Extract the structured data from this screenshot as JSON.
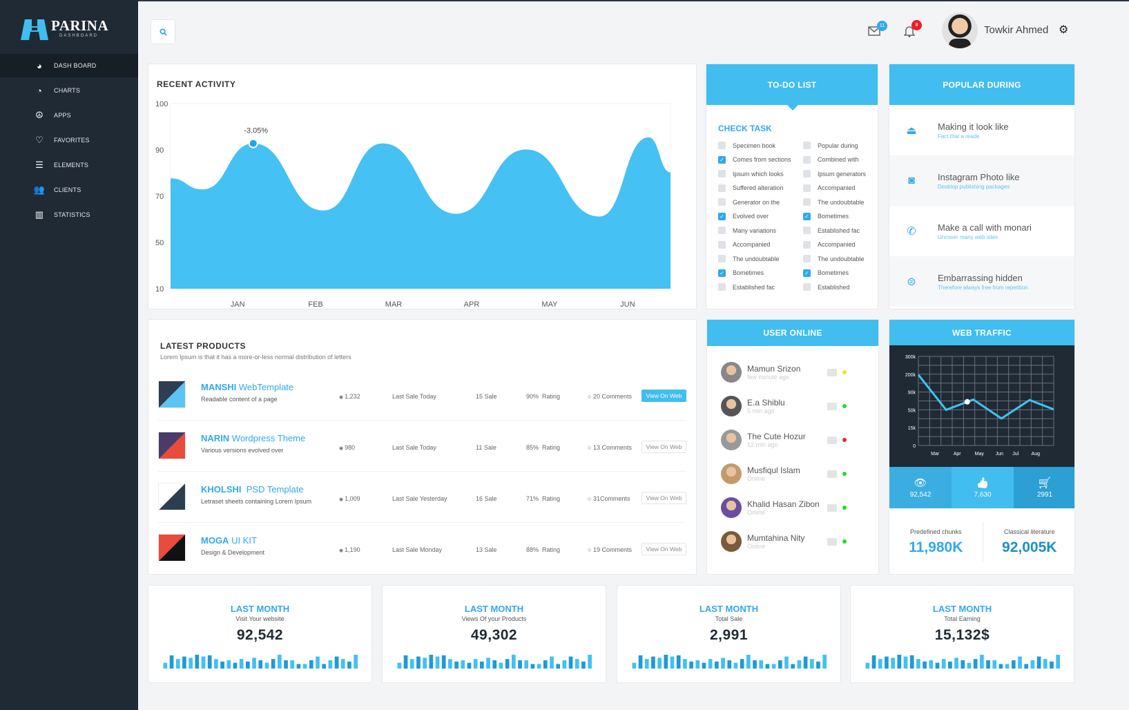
{
  "brand": {
    "name": "PARINA",
    "subtitle": "DASHBOARD",
    "accent": "#41bdf0"
  },
  "sidebar": {
    "items": [
      {
        "label": "DASH BOARD",
        "icon": "dashboard-icon",
        "active": true
      },
      {
        "label": "CHARTS",
        "icon": "pie-chart-icon"
      },
      {
        "label": "APPS",
        "icon": "apps-icon"
      },
      {
        "label": "FAVORITES",
        "icon": "heart-icon"
      },
      {
        "label": "ELEMENTS",
        "icon": "list-icon"
      },
      {
        "label": "CLIENTS",
        "icon": "users-icon"
      },
      {
        "label": "STATISTICS",
        "icon": "bar-chart-icon"
      }
    ]
  },
  "header": {
    "mail_count": "11",
    "notification_count": "8",
    "user_name": "Towkir Ahmed"
  },
  "recent_activity": {
    "title": "RECENT ACTIVITY",
    "chart_data": {
      "type": "area",
      "categories": [
        "JAN",
        "FEB",
        "MAR",
        "APR",
        "MAY",
        "JUN"
      ],
      "yticks": [
        100,
        90,
        70,
        50,
        10
      ],
      "xlim": [
        0.14,
        6.55
      ],
      "x": [
        0.14,
        0.55,
        1.2,
        2.1,
        2.86,
        3.8,
        4.7,
        5.64,
        6.27,
        6.55
      ],
      "y": [
        77.7,
        72.9,
        91.4,
        63.8,
        91.4,
        62.4,
        90.1,
        61.2,
        92.7,
        80.3
      ],
      "annotation": {
        "x": 1.2,
        "y": 91.4,
        "label": "-3.05%"
      },
      "color": "#45c1f3"
    }
  },
  "todo": {
    "title": "TO-DO LIST",
    "section": "CHECK TASK",
    "left": [
      {
        "label": "Specimen book",
        "checked": false
      },
      {
        "label": "Comes from sections",
        "checked": true
      },
      {
        "label": "Ipsum which looks",
        "checked": false
      },
      {
        "label": "Suffered alteration",
        "checked": false
      },
      {
        "label": "Generator on the",
        "checked": false
      },
      {
        "label": "Evolved over",
        "checked": true
      },
      {
        "label": "Many variations",
        "checked": false
      },
      {
        "label": "Accompanied",
        "checked": false
      },
      {
        "label": "The undoubtable",
        "checked": false
      },
      {
        "label": "Bometimes",
        "checked": true
      },
      {
        "label": "Established fac",
        "checked": false
      }
    ],
    "right": [
      {
        "label": "Popular during",
        "checked": false
      },
      {
        "label": "Combined with",
        "checked": false
      },
      {
        "label": "Ipsum generators",
        "checked": false
      },
      {
        "label": "Accompanied",
        "checked": false
      },
      {
        "label": "The undoubtable",
        "checked": false
      },
      {
        "label": "Bometimes",
        "checked": true
      },
      {
        "label": "Established fac",
        "checked": false
      },
      {
        "label": "Accompanied",
        "checked": false
      },
      {
        "label": "The undoubtable",
        "checked": false
      },
      {
        "label": "Bometimes",
        "checked": true
      },
      {
        "label": "Established",
        "checked": false
      }
    ]
  },
  "popular": {
    "title": "POPULAR DURING",
    "items": [
      {
        "title": "Making it look like",
        "sub": "Fact that a reade",
        "icon": "eject-icon",
        "glyph": "⏏"
      },
      {
        "title": "Instagram Photo like",
        "sub": "Desktop publishing packages",
        "icon": "instagram-icon",
        "glyph": "◙"
      },
      {
        "title": "Make a call with monari",
        "sub": "Uncover many web sites",
        "icon": "phone-icon",
        "glyph": "✆"
      },
      {
        "title": "Embarrassing hidden",
        "sub": "Therefore always free from repetition",
        "icon": "chat-icon",
        "glyph": "⊜"
      }
    ]
  },
  "products": {
    "title": "LATEST PRODUCTS",
    "subtitle": "Lorem Ipsum is that it has a more-or-less normal distribution of letters",
    "items": [
      {
        "name_bold": "MANSHI",
        "name_rest": " WebTemplate",
        "desc": "Readable content of a page",
        "views": "1,232",
        "last_sale": "Last Sale Today",
        "sales": "15 Sale",
        "rating": "90%  Rating",
        "comments": "20 Comments",
        "button": "View On Web",
        "primary": true
      },
      {
        "name_bold": "NARIN",
        "name_rest": " Wordpress Theme",
        "desc": "Various versions evolved over",
        "views": "980",
        "last_sale": "Last Sale Today",
        "sales": "11 Sale",
        "rating": "85%  Rating",
        "comments": "13 Comments",
        "button": "View On Web",
        "primary": false
      },
      {
        "name_bold": "KHOLSHI",
        "name_rest": "  PSD Template",
        "desc": "Letraset sheets containing Lorem Ipsum",
        "views": "1,009",
        "last_sale": "Last Sale Yesterday",
        "sales": "16 Sale",
        "rating": "71%  Rating",
        "comments": "31Comments",
        "button": "View On Web",
        "primary": false
      },
      {
        "name_bold": "MOGA",
        "name_rest": " UI KIT",
        "desc": "Design & Development",
        "views": "1,190",
        "last_sale": "Last Sale Monday",
        "sales": "13 Sale",
        "rating": "88%  Rating",
        "comments": "19 Comments",
        "button": "View On Web",
        "primary": false
      }
    ]
  },
  "users_online": {
    "title": "USER ONLINE",
    "items": [
      {
        "name": "Mamun Srizon",
        "status": "few minute ago",
        "dot": "#f2e22a"
      },
      {
        "name": "E.a Shiblu",
        "status": "5 min ago",
        "dot": "#22dd22"
      },
      {
        "name": "The Cute Hozur",
        "status": "12 min ago",
        "dot": "#e62b2b"
      },
      {
        "name": "Musfiqul Islam",
        "status": "Online",
        "dot": "#22dd22"
      },
      {
        "name": "Khalid Hasan Zibon",
        "status": "Online",
        "dot": "#22dd22"
      },
      {
        "name": "Mumtahina Nity",
        "status": "Online",
        "dot": "#22dd22"
      }
    ]
  },
  "web_traffic": {
    "title": "WEB TRAFFIC",
    "chart_data": {
      "type": "line",
      "xticks": [
        {
          "label": "Mar",
          "x": 3
        },
        {
          "label": "Apr",
          "x": 4.1
        },
        {
          "label": "May",
          "x": 5.2
        },
        {
          "label": "Jun",
          "x": 6.2
        },
        {
          "label": "Jul",
          "x": 7
        },
        {
          "label": "Aug",
          "x": 8
        }
      ],
      "yticks": [
        "300k",
        "200k",
        "90k",
        "50k",
        "15k",
        "0"
      ],
      "ytick_values": [
        300,
        200,
        90,
        50,
        15,
        0
      ],
      "xlim": [
        2.17,
        8.9
      ],
      "x": [
        2.17,
        3.55,
        4.6,
        4.9,
        6.3,
        7.7,
        8.9
      ],
      "y": [
        196,
        50,
        68,
        73,
        33,
        72,
        51
      ],
      "marker_index": 2,
      "grid": true,
      "color": "#3ec3f2"
    },
    "stats": [
      {
        "icon": "eye-icon",
        "glyph": "👁",
        "value": "92,542"
      },
      {
        "icon": "thumbs-up-icon",
        "glyph": "👍",
        "value": "7,630"
      },
      {
        "icon": "cart-icon",
        "glyph": "🛒",
        "value": "2991"
      }
    ],
    "summary": [
      {
        "label": "Predefined chunks",
        "value": "11,980K"
      },
      {
        "label": "Classical literature",
        "value": "92,005K"
      }
    ]
  },
  "stat_cards": [
    {
      "heading": "LAST MONTH",
      "sub": "Visit Your website",
      "value": "92,542"
    },
    {
      "heading": "LAST MONTH",
      "sub": "Views Of your Products",
      "value": "49,302"
    },
    {
      "heading": "LAST MONTH",
      "sub": "Total Sale",
      "value": "2,991"
    },
    {
      "heading": "LAST MONTH",
      "sub": "Total Earning",
      "value": "15,132$"
    }
  ],
  "sparkline": [
    3,
    9,
    6,
    8,
    7,
    10,
    8,
    9,
    6,
    4,
    5,
    3,
    6,
    4,
    7,
    5,
    3,
    6,
    10,
    5,
    5,
    2,
    2,
    5,
    8,
    2,
    5,
    8,
    6,
    4,
    10
  ]
}
